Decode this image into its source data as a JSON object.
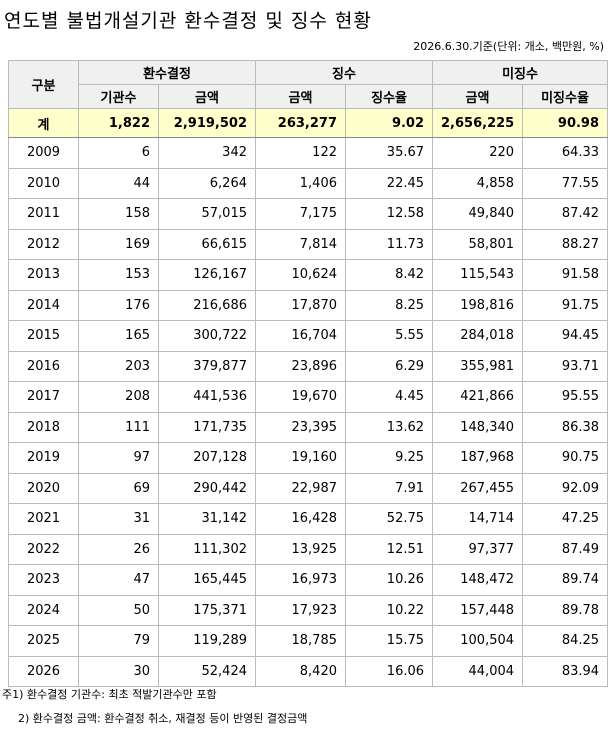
{
  "title": "연도별 불법개설기관 환수결정 및 징수 현황",
  "subtitle": "2026.6.30.기준(단위: 개소, 백만원, %)",
  "table": {
    "corner": "구분",
    "groups": [
      "환수결정",
      "징수",
      "미징수"
    ],
    "columns": [
      "기관수",
      "금액",
      "금액",
      "징수율",
      "금액",
      "미징수율"
    ],
    "total": [
      "계",
      "1,822",
      "2,919,502",
      "263,277",
      "9.02",
      "2,656,225",
      "90.98"
    ],
    "rows": [
      [
        "2009",
        "6",
        "342",
        "122",
        "35.67",
        "220",
        "64.33"
      ],
      [
        "2010",
        "44",
        "6,264",
        "1,406",
        "22.45",
        "4,858",
        "77.55"
      ],
      [
        "2011",
        "158",
        "57,015",
        "7,175",
        "12.58",
        "49,840",
        "87.42"
      ],
      [
        "2012",
        "169",
        "66,615",
        "7,814",
        "11.73",
        "58,801",
        "88.27"
      ],
      [
        "2013",
        "153",
        "126,167",
        "10,624",
        "8.42",
        "115,543",
        "91.58"
      ],
      [
        "2014",
        "176",
        "216,686",
        "17,870",
        "8.25",
        "198,816",
        "91.75"
      ],
      [
        "2015",
        "165",
        "300,722",
        "16,704",
        "5.55",
        "284,018",
        "94.45"
      ],
      [
        "2016",
        "203",
        "379,877",
        "23,896",
        "6.29",
        "355,981",
        "93.71"
      ],
      [
        "2017",
        "208",
        "441,536",
        "19,670",
        "4.45",
        "421,866",
        "95.55"
      ],
      [
        "2018",
        "111",
        "171,735",
        "23,395",
        "13.62",
        "148,340",
        "86.38"
      ],
      [
        "2019",
        "97",
        "207,128",
        "19,160",
        "9.25",
        "187,968",
        "90.75"
      ],
      [
        "2020",
        "69",
        "290,442",
        "22,987",
        "7.91",
        "267,455",
        "92.09"
      ],
      [
        "2021",
        "31",
        "31,142",
        "16,428",
        "52.75",
        "14,714",
        "47.25"
      ],
      [
        "2022",
        "26",
        "111,302",
        "13,925",
        "12.51",
        "97,377",
        "87.49"
      ],
      [
        "2023",
        "47",
        "165,445",
        "16,973",
        "10.26",
        "148,472",
        "89.74"
      ],
      [
        "2024",
        "50",
        "175,371",
        "17,923",
        "10.22",
        "157,448",
        "89.78"
      ],
      [
        "2025",
        "79",
        "119,289",
        "18,785",
        "15.75",
        "100,504",
        "84.25"
      ],
      [
        "2026",
        "30",
        "52,424",
        "8,420",
        "16.06",
        "44,004",
        "83.94"
      ]
    ]
  },
  "notes": [
    "주1) 환수결정 기관수: 최초 적발기관수만 포함",
    "2) 환수결정 금액: 환수결정 취소, 재결정 등이 반영된 결정금액"
  ]
}
